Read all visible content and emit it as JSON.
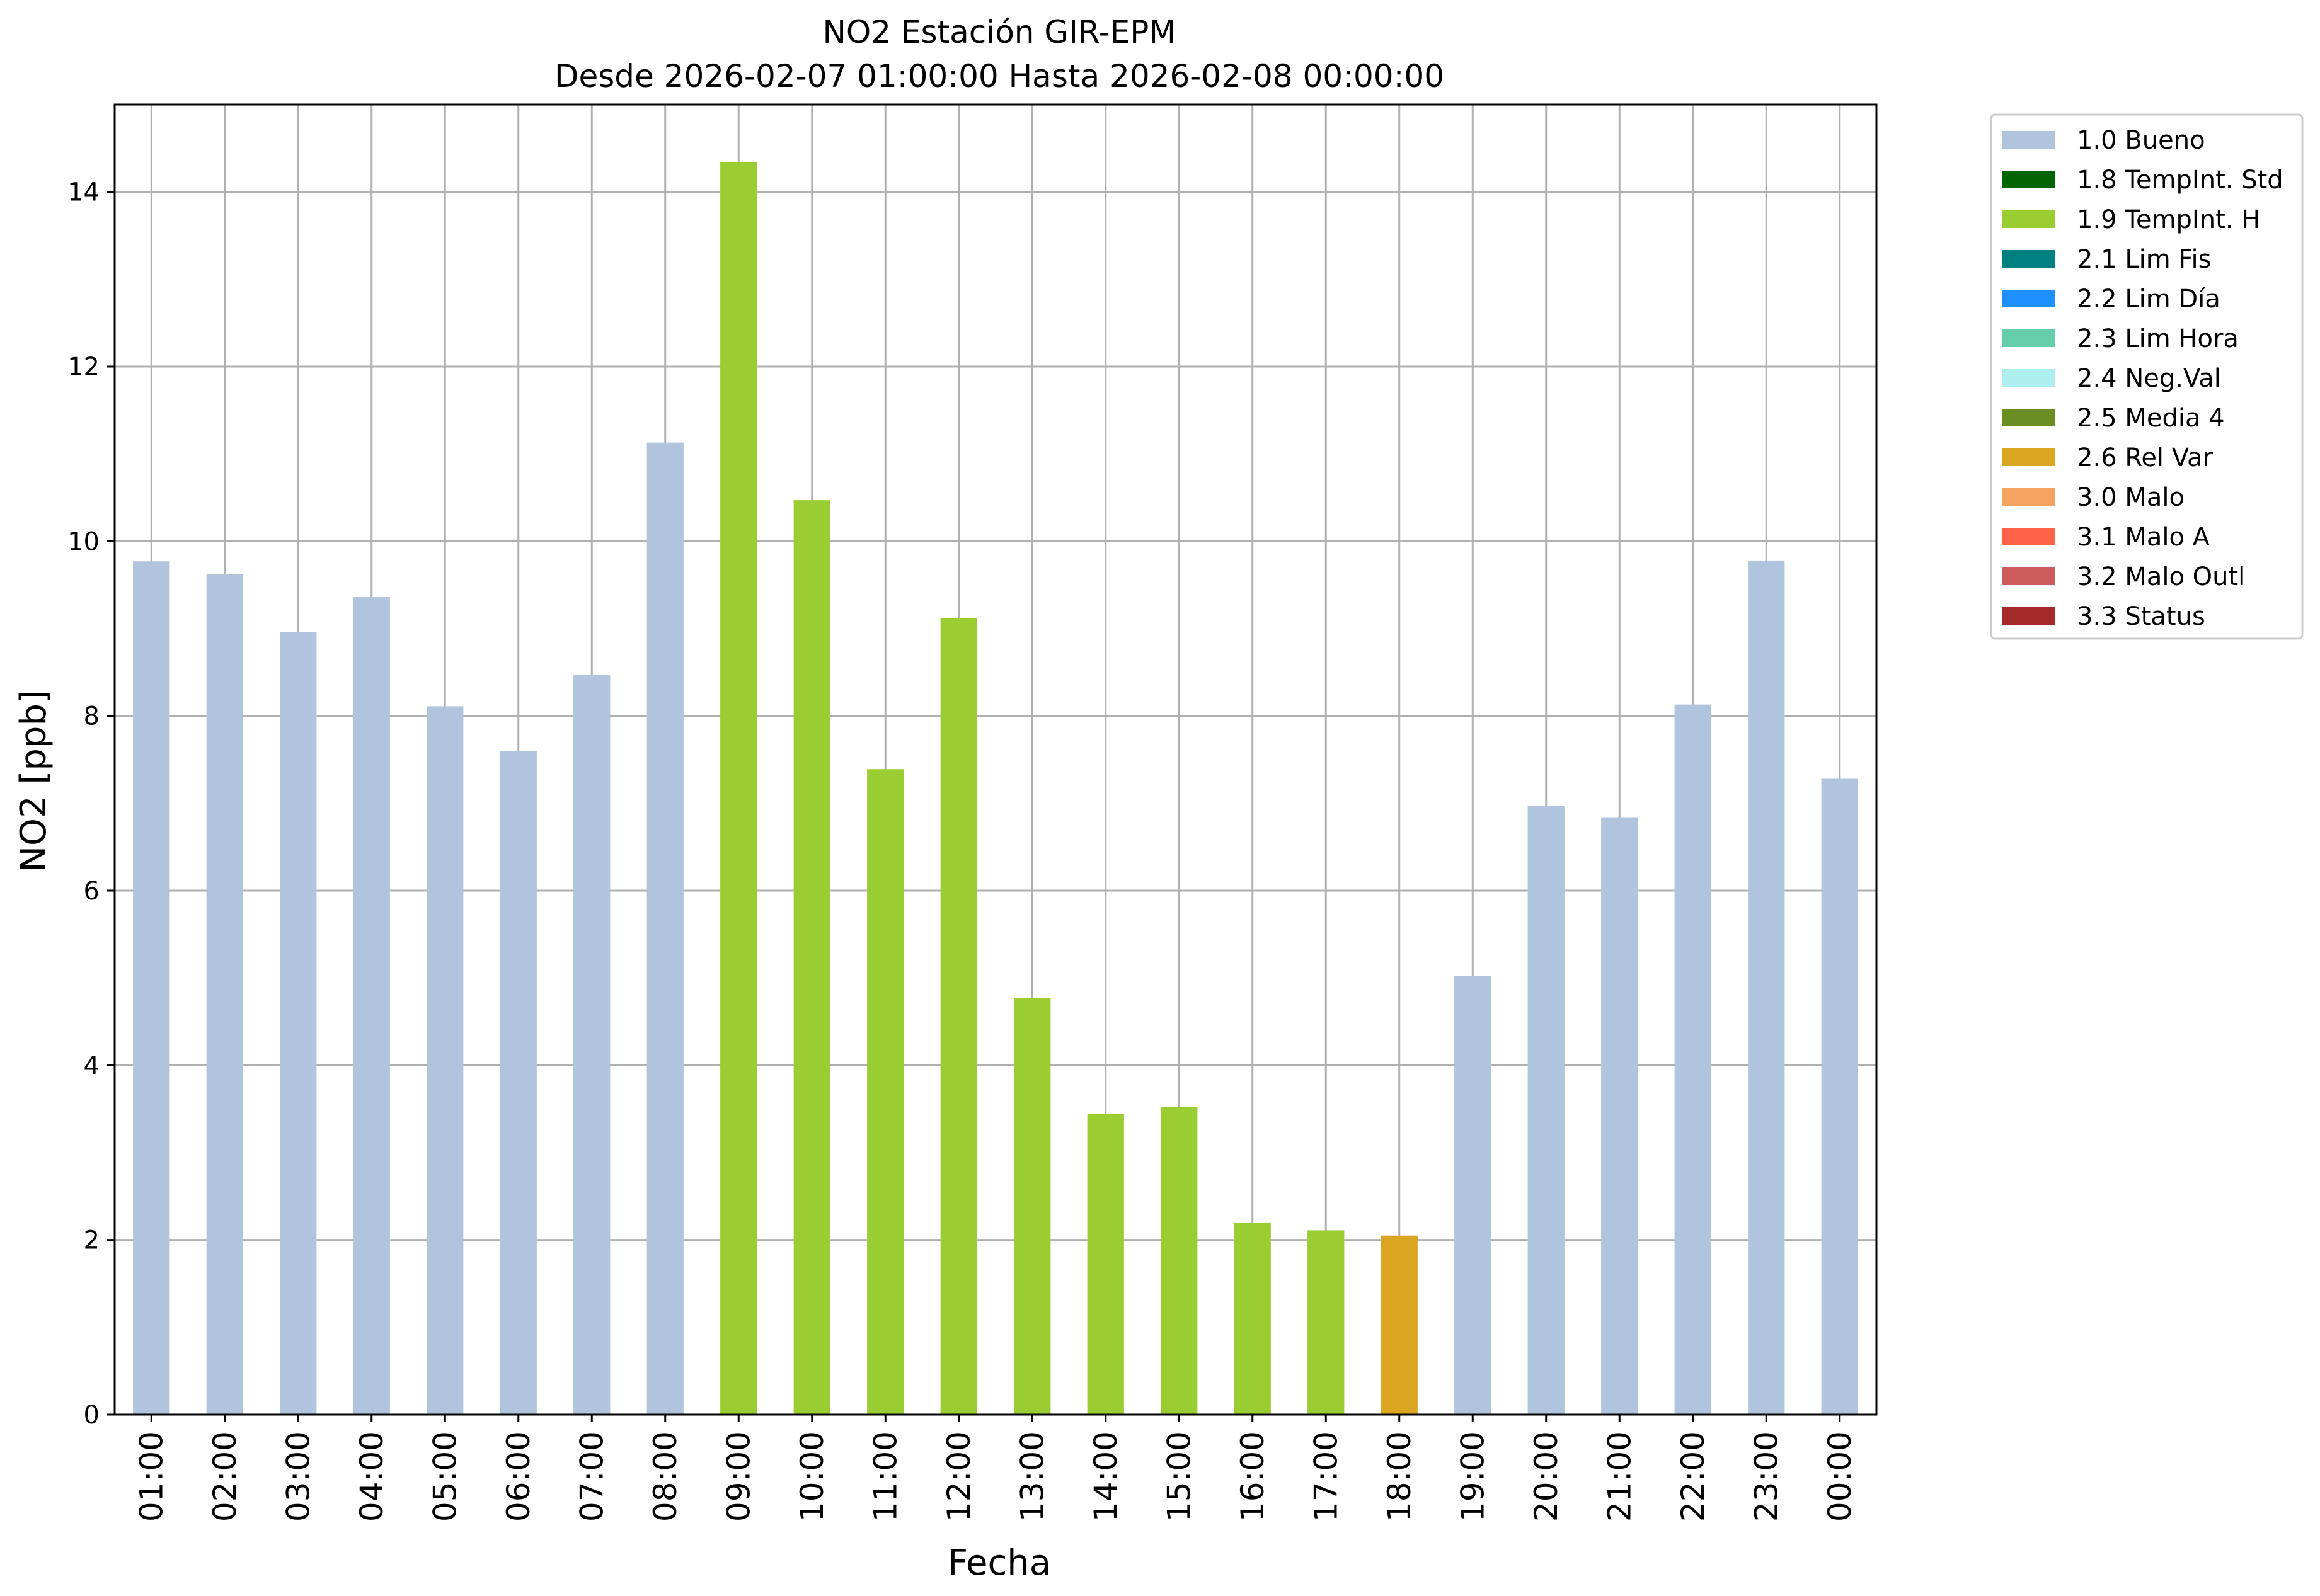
{
  "chart_data": {
    "type": "bar",
    "title": "NO2 Estación GIR-EPM",
    "subtitle": "Desde 2026-02-07 01:00:00 Hasta 2026-02-08 00:00:00",
    "xlabel": "Fecha",
    "ylabel": "NO2 [ppb]",
    "ylim": [
      0,
      15
    ],
    "yticks": [
      "0",
      "2",
      "4",
      "6",
      "8",
      "10",
      "12",
      "14"
    ],
    "grid": true,
    "legend_position": "outside top-right",
    "categories": [
      "01:00",
      "02:00",
      "03:00",
      "04:00",
      "05:00",
      "06:00",
      "07:00",
      "08:00",
      "09:00",
      "10:00",
      "11:00",
      "12:00",
      "13:00",
      "14:00",
      "15:00",
      "16:00",
      "17:00",
      "18:00",
      "19:00",
      "20:00",
      "21:00",
      "22:00",
      "23:00",
      "00:00"
    ],
    "values": [
      9.77,
      9.62,
      8.96,
      9.36,
      8.11,
      7.6,
      8.47,
      11.13,
      14.34,
      10.47,
      7.39,
      9.12,
      4.77,
      3.44,
      3.52,
      2.2,
      2.11,
      2.05,
      5.02,
      6.97,
      6.84,
      8.13,
      9.78,
      7.28
    ],
    "flags": [
      "1.0 Bueno",
      "1.0 Bueno",
      "1.0 Bueno",
      "1.0 Bueno",
      "1.0 Bueno",
      "1.0 Bueno",
      "1.0 Bueno",
      "1.0 Bueno",
      "1.9 TempInt. H",
      "1.9 TempInt. H",
      "1.9 TempInt. H",
      "1.9 TempInt. H",
      "1.9 TempInt. H",
      "1.9 TempInt. H",
      "1.9 TempInt. H",
      "1.9 TempInt. H",
      "1.9 TempInt. H",
      "2.6 Rel Var",
      "1.0 Bueno",
      "1.0 Bueno",
      "1.0 Bueno",
      "1.0 Bueno",
      "1.0 Bueno",
      "1.0 Bueno"
    ],
    "legend": [
      {
        "label": "1.0 Bueno",
        "color": "#b0c4de"
      },
      {
        "label": "1.8 TempInt. Std",
        "color": "#006400"
      },
      {
        "label": "1.9 TempInt. H",
        "color": "#9acd32"
      },
      {
        "label": "2.1 Lim Fis",
        "color": "#008080"
      },
      {
        "label": "2.2 Lim Día",
        "color": "#1e90ff"
      },
      {
        "label": "2.3 Lim Hora",
        "color": "#66cdaa"
      },
      {
        "label": "2.4 Neg.Val",
        "color": "#afeeee"
      },
      {
        "label": "2.5 Media 4",
        "color": "#6b8e23"
      },
      {
        "label": "2.6 Rel Var",
        "color": "#daa520"
      },
      {
        "label": "3.0 Malo",
        "color": "#f4a460"
      },
      {
        "label": "3.1 Malo A",
        "color": "#ff6347"
      },
      {
        "label": "3.2 Malo Outl",
        "color": "#cd5c5c"
      },
      {
        "label": "3.3 Status",
        "color": "#a52a2a"
      }
    ]
  }
}
